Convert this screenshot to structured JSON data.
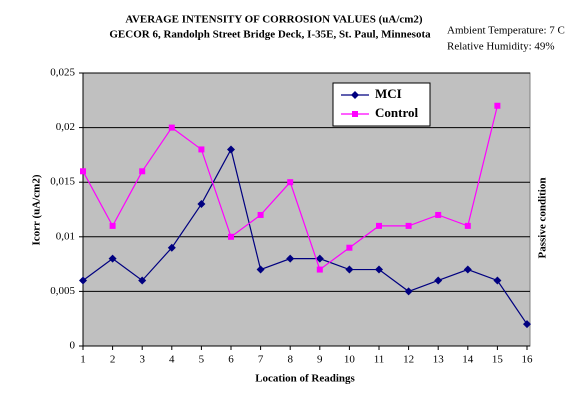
{
  "chart_data": {
    "type": "line",
    "title": "AVERAGE INTENSITY OF CORROSION VALUES (uA/cm2)",
    "subtitle": "GECOR 6, Randolph Street Bridge Deck, I-35E, St. Paul, Minnesota",
    "annotations": [
      "Ambient Temperature: 7 C",
      "Relative Humidity: 49%"
    ],
    "y2_label": "Passive condition",
    "x_label": "Location of Readings",
    "y_label": "Icorr (uA/cm2)",
    "x": [
      1,
      2,
      3,
      4,
      5,
      6,
      7,
      8,
      9,
      10,
      11,
      12,
      13,
      14,
      15,
      16
    ],
    "xlim": [
      1,
      16
    ],
    "xticks": [
      1,
      2,
      3,
      4,
      5,
      6,
      7,
      8,
      9,
      10,
      11,
      12,
      13,
      14,
      15,
      16
    ],
    "ylim": [
      0,
      0.025
    ],
    "yticks": [
      0,
      {
        "value": 0.005,
        "label": "0,005"
      },
      {
        "value": 0.01,
        "label": "0,01"
      },
      {
        "value": 0.015,
        "label": "0,015"
      },
      {
        "value": 0.02,
        "label": "0,02"
      },
      {
        "value": 0.025,
        "label": "0,025"
      }
    ],
    "grid": true,
    "legend": "upper right",
    "series": [
      {
        "name": "MCI",
        "color": "#000080",
        "marker": "diamond",
        "values": [
          0.006,
          0.008,
          0.006,
          0.009,
          0.013,
          0.018,
          0.007,
          0.008,
          0.008,
          0.007,
          0.007,
          0.005,
          0.006,
          0.007,
          0.006,
          0.002
        ]
      },
      {
        "name": "Control",
        "color": "#ff00ff",
        "marker": "square",
        "values": [
          0.016,
          0.011,
          0.016,
          0.02,
          0.018,
          0.01,
          0.012,
          0.015,
          0.007,
          0.009,
          0.011,
          0.011,
          0.012,
          0.011,
          0.022,
          null
        ]
      }
    ]
  }
}
